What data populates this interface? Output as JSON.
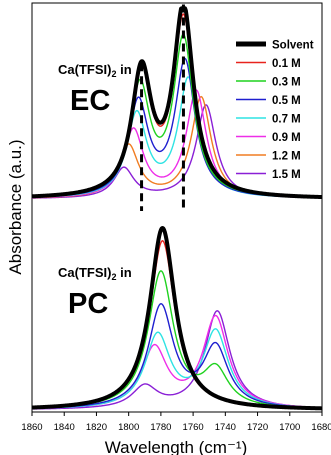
{
  "chart_data": {
    "type": "line",
    "xlabel": "Wavelength (cm⁻¹)",
    "ylabel": "Absorbance (a.u.)",
    "xlim": [
      1860,
      1680
    ],
    "x_reversed": true,
    "xticks": [
      1860,
      1840,
      1820,
      1800,
      1780,
      1760,
      1740,
      1720,
      1700,
      1680
    ],
    "y_ticks_shown": false,
    "grid": false,
    "legend": {
      "placement": "top-right",
      "entries": [
        "Solvent",
        "0.1 M",
        "0.3 M",
        "0.5 M",
        "0.7 M",
        "0.9 M",
        "1.2 M",
        "1.5 M"
      ]
    },
    "series_colors": [
      "#000000",
      "#e8231d",
      "#1fd21f",
      "#1f1fcf",
      "#2ee3e3",
      "#ee2ee8",
      "#f07d22",
      "#8a1fd6"
    ],
    "panels": [
      {
        "label_prefix": "Ca(TFSI)",
        "label_sub": "2",
        "label_suffix": " in",
        "solvent": "EC",
        "peak_markers_x": [
          1792,
          1766
        ],
        "series": [
          {
            "name": "Solvent",
            "peaks": [
              [
                1792,
                0.66
              ],
              [
                1766,
                1.0
              ]
            ]
          },
          {
            "name": "0.1 M",
            "peaks": [
              [
                1792,
                0.64
              ],
              [
                1766,
                0.94
              ]
            ]
          },
          {
            "name": "0.3 M",
            "peaks": [
              [
                1793,
                0.58
              ],
              [
                1766,
                0.84
              ]
            ]
          },
          {
            "name": "0.5 M",
            "peaks": [
              [
                1794,
                0.5
              ],
              [
                1765,
                0.72
              ]
            ]
          },
          {
            "name": "0.7 M",
            "peaks": [
              [
                1795,
                0.44
              ],
              [
                1763,
                0.63
              ]
            ]
          },
          {
            "name": "0.9 M",
            "peaks": [
              [
                1797,
                0.36
              ],
              [
                1758,
                0.57
              ]
            ]
          },
          {
            "name": "1.2 M",
            "peaks": [
              [
                1800,
                0.28
              ],
              [
                1755,
                0.54
              ]
            ]
          },
          {
            "name": "1.5 M",
            "peaks": [
              [
                1803,
                0.16
              ],
              [
                1752,
                0.5
              ]
            ]
          }
        ]
      },
      {
        "label_prefix": "Ca(TFSI)",
        "label_sub": "2",
        "label_suffix": " in",
        "solvent": "PC",
        "series": [
          {
            "name": "Solvent",
            "peaks": [
              [
                1779,
                1.0
              ]
            ]
          },
          {
            "name": "0.1 M",
            "peaks": [
              [
                1779,
                0.93
              ]
            ]
          },
          {
            "name": "0.3 M",
            "peaks": [
              [
                1780,
                0.75
              ],
              [
                1746,
                0.2
              ]
            ]
          },
          {
            "name": "0.5 M",
            "peaks": [
              [
                1780,
                0.56
              ],
              [
                1746,
                0.33
              ]
            ]
          },
          {
            "name": "0.7 M",
            "peaks": [
              [
                1782,
                0.4
              ],
              [
                1746,
                0.42
              ]
            ]
          },
          {
            "name": "0.9 M",
            "peaks": [
              [
                1784,
                0.33
              ],
              [
                1746,
                0.5
              ]
            ]
          },
          {
            "name": "1.5 M",
            "peaks": [
              [
                1790,
                0.12
              ],
              [
                1745,
                0.54
              ]
            ]
          }
        ]
      }
    ]
  }
}
